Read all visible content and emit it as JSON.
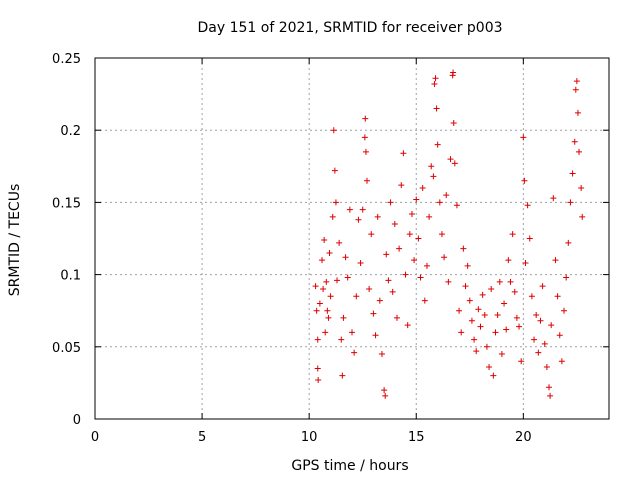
{
  "chart_data": {
    "type": "scatter",
    "title": "Day 151 of 2021, SRMTID for receiver p003",
    "xlabel": "GPS time / hours",
    "ylabel": "SRMTID / TECUs",
    "xlim": [
      0,
      24
    ],
    "ylim": [
      0,
      0.25
    ],
    "xticks": [
      0,
      5,
      10,
      15,
      20
    ],
    "xtick_labels": [
      "0",
      "5",
      "10",
      "15",
      "20"
    ],
    "yticks": [
      0,
      0.05,
      0.1,
      0.15,
      0.2,
      0.25
    ],
    "ytick_labels": [
      "0",
      "0.05",
      "0.1",
      "0.15",
      "0.2",
      "0.25"
    ],
    "grid": true,
    "marker": "+",
    "color": "#dd0000",
    "series": [
      {
        "name": "SRMTID",
        "points": [
          [
            10.3,
            0.092
          ],
          [
            10.35,
            0.075
          ],
          [
            10.4,
            0.055
          ],
          [
            10.4,
            0.035
          ],
          [
            10.42,
            0.027
          ],
          [
            10.5,
            0.08
          ],
          [
            10.6,
            0.11
          ],
          [
            10.65,
            0.09
          ],
          [
            10.7,
            0.124
          ],
          [
            10.75,
            0.06
          ],
          [
            10.8,
            0.095
          ],
          [
            10.85,
            0.075
          ],
          [
            10.9,
            0.07
          ],
          [
            10.95,
            0.115
          ],
          [
            11.0,
            0.085
          ],
          [
            11.1,
            0.14
          ],
          [
            11.15,
            0.2
          ],
          [
            11.2,
            0.172
          ],
          [
            11.25,
            0.15
          ],
          [
            11.3,
            0.096
          ],
          [
            11.4,
            0.122
          ],
          [
            11.5,
            0.055
          ],
          [
            11.55,
            0.03
          ],
          [
            11.6,
            0.07
          ],
          [
            11.7,
            0.112
          ],
          [
            11.8,
            0.098
          ],
          [
            11.9,
            0.145
          ],
          [
            12.0,
            0.06
          ],
          [
            12.1,
            0.046
          ],
          [
            12.2,
            0.085
          ],
          [
            12.3,
            0.138
          ],
          [
            12.4,
            0.108
          ],
          [
            12.5,
            0.145
          ],
          [
            12.6,
            0.195
          ],
          [
            12.62,
            0.208
          ],
          [
            12.65,
            0.185
          ],
          [
            12.7,
            0.165
          ],
          [
            12.8,
            0.09
          ],
          [
            12.9,
            0.128
          ],
          [
            13.0,
            0.073
          ],
          [
            13.1,
            0.058
          ],
          [
            13.2,
            0.14
          ],
          [
            13.3,
            0.082
          ],
          [
            13.4,
            0.045
          ],
          [
            13.5,
            0.02
          ],
          [
            13.55,
            0.016
          ],
          [
            13.6,
            0.114
          ],
          [
            13.7,
            0.096
          ],
          [
            13.8,
            0.15
          ],
          [
            13.9,
            0.088
          ],
          [
            14.0,
            0.135
          ],
          [
            14.1,
            0.07
          ],
          [
            14.2,
            0.118
          ],
          [
            14.3,
            0.162
          ],
          [
            14.4,
            0.184
          ],
          [
            14.5,
            0.1
          ],
          [
            14.6,
            0.065
          ],
          [
            14.7,
            0.128
          ],
          [
            14.8,
            0.142
          ],
          [
            14.9,
            0.11
          ],
          [
            15.0,
            0.152
          ],
          [
            15.1,
            0.125
          ],
          [
            15.2,
            0.098
          ],
          [
            15.3,
            0.16
          ],
          [
            15.4,
            0.082
          ],
          [
            15.5,
            0.106
          ],
          [
            15.6,
            0.14
          ],
          [
            15.7,
            0.175
          ],
          [
            15.8,
            0.168
          ],
          [
            15.85,
            0.232
          ],
          [
            15.9,
            0.236
          ],
          [
            15.95,
            0.215
          ],
          [
            16.0,
            0.19
          ],
          [
            16.1,
            0.15
          ],
          [
            16.2,
            0.128
          ],
          [
            16.3,
            0.112
          ],
          [
            16.4,
            0.155
          ],
          [
            16.5,
            0.095
          ],
          [
            16.6,
            0.18
          ],
          [
            16.7,
            0.238
          ],
          [
            16.72,
            0.24
          ],
          [
            16.75,
            0.205
          ],
          [
            16.8,
            0.177
          ],
          [
            16.9,
            0.148
          ],
          [
            17.0,
            0.075
          ],
          [
            17.1,
            0.06
          ],
          [
            17.2,
            0.118
          ],
          [
            17.3,
            0.092
          ],
          [
            17.4,
            0.106
          ],
          [
            17.5,
            0.082
          ],
          [
            17.6,
            0.068
          ],
          [
            17.7,
            0.055
          ],
          [
            17.8,
            0.047
          ],
          [
            17.9,
            0.076
          ],
          [
            18.0,
            0.064
          ],
          [
            18.1,
            0.086
          ],
          [
            18.2,
            0.072
          ],
          [
            18.3,
            0.05
          ],
          [
            18.4,
            0.036
          ],
          [
            18.5,
            0.09
          ],
          [
            18.6,
            0.03
          ],
          [
            18.7,
            0.06
          ],
          [
            18.8,
            0.072
          ],
          [
            18.9,
            0.095
          ],
          [
            19.0,
            0.045
          ],
          [
            19.1,
            0.08
          ],
          [
            19.2,
            0.062
          ],
          [
            19.3,
            0.11
          ],
          [
            19.4,
            0.095
          ],
          [
            19.5,
            0.128
          ],
          [
            19.6,
            0.088
          ],
          [
            19.7,
            0.07
          ],
          [
            19.8,
            0.064
          ],
          [
            19.9,
            0.04
          ],
          [
            20.0,
            0.195
          ],
          [
            20.05,
            0.165
          ],
          [
            20.1,
            0.108
          ],
          [
            20.2,
            0.148
          ],
          [
            20.3,
            0.125
          ],
          [
            20.4,
            0.085
          ],
          [
            20.5,
            0.055
          ],
          [
            20.6,
            0.072
          ],
          [
            20.7,
            0.046
          ],
          [
            20.8,
            0.068
          ],
          [
            20.9,
            0.092
          ],
          [
            21.0,
            0.052
          ],
          [
            21.1,
            0.036
          ],
          [
            21.2,
            0.022
          ],
          [
            21.25,
            0.016
          ],
          [
            21.3,
            0.065
          ],
          [
            21.4,
            0.153
          ],
          [
            21.5,
            0.11
          ],
          [
            21.6,
            0.085
          ],
          [
            21.7,
            0.058
          ],
          [
            21.8,
            0.04
          ],
          [
            21.9,
            0.075
          ],
          [
            22.0,
            0.098
          ],
          [
            22.1,
            0.122
          ],
          [
            22.2,
            0.15
          ],
          [
            22.3,
            0.17
          ],
          [
            22.4,
            0.192
          ],
          [
            22.45,
            0.228
          ],
          [
            22.5,
            0.234
          ],
          [
            22.55,
            0.212
          ],
          [
            22.6,
            0.185
          ],
          [
            22.7,
            0.16
          ],
          [
            22.75,
            0.14
          ]
        ]
      }
    ]
  }
}
